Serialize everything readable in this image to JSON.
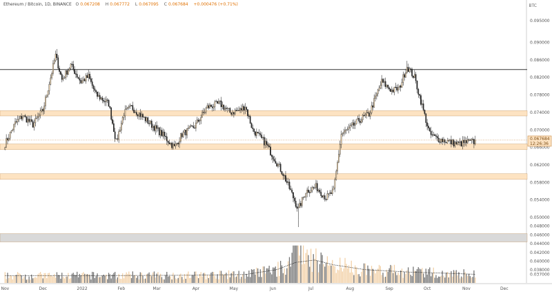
{
  "header": {
    "symbol": "Ethereum / Bitcoin, 1D, BINANCE",
    "open_label": "O",
    "open": "0.067208",
    "high_label": "H",
    "high": "0.067772",
    "low_label": "L",
    "low": "0.067095",
    "close_label": "C",
    "close": "0.067684",
    "change": "+0.000476 (+0.71%)"
  },
  "price_tag": {
    "price": "0.067684",
    "countdown": "12:26:36"
  },
  "chart_data": {
    "type": "candlestick",
    "currency_unit": "BTC",
    "ylim": [
      0.0366,
      0.0997
    ],
    "y_ticks": [
      "0.095000",
      "0.090000",
      "0.086000",
      "0.082000",
      "0.078000",
      "0.074000",
      "0.070000",
      "0.066000",
      "0.062000",
      "0.058000",
      "0.054000",
      "0.050000",
      "0.048000",
      "0.046000",
      "0.044000",
      "0.042000",
      "0.040000",
      "0.038000",
      "0.037000"
    ],
    "y_tick_values": [
      0.095,
      0.09,
      0.086,
      0.082,
      0.078,
      0.074,
      0.07,
      0.066,
      0.062,
      0.058,
      0.054,
      0.05,
      0.048,
      0.046,
      0.044,
      0.042,
      0.04,
      0.038,
      0.037
    ],
    "x_ticks": [
      "Nov",
      "Dec",
      "2022",
      "Feb",
      "Mar",
      "Apr",
      "May",
      "Jun",
      "Jul",
      "Aug",
      "Sep",
      "Oct",
      "Nov",
      "Dec"
    ],
    "x_tick_days": [
      0,
      30,
      61,
      92,
      120,
      151,
      181,
      212,
      242,
      273,
      304,
      334,
      365,
      395
    ],
    "x_note": "x values are days since start of Nov 2021 (one candle per day)",
    "xlim": [
      -4,
      412
    ],
    "price_line": 0.067684,
    "resistance_line": 0.0838,
    "zones": [
      {
        "name": "zone-0.0742",
        "low": 0.0732,
        "high": 0.0744,
        "color": "#fde3c2"
      },
      {
        "name": "zone-0.0667",
        "low": 0.0655,
        "high": 0.0668,
        "color": "#fde3c2"
      },
      {
        "name": "zone-0.0596",
        "low": 0.0587,
        "high": 0.06,
        "color": "#fde3c2"
      },
      {
        "name": "zone-0.0453",
        "low": 0.0444,
        "high": 0.0463,
        "color": "#d9d9d9"
      }
    ],
    "anchors": [
      [
        0,
        0.0668
      ],
      [
        8,
        0.0715
      ],
      [
        14,
        0.0732
      ],
      [
        22,
        0.0712
      ],
      [
        30,
        0.0745
      ],
      [
        40,
        0.087
      ],
      [
        45,
        0.0815
      ],
      [
        52,
        0.0848
      ],
      [
        60,
        0.081
      ],
      [
        66,
        0.0822
      ],
      [
        72,
        0.078
      ],
      [
        82,
        0.076
      ],
      [
        88,
        0.0672
      ],
      [
        94,
        0.0738
      ],
      [
        100,
        0.0752
      ],
      [
        112,
        0.0722
      ],
      [
        125,
        0.0688
      ],
      [
        134,
        0.066
      ],
      [
        140,
        0.069
      ],
      [
        150,
        0.0708
      ],
      [
        160,
        0.0752
      ],
      [
        170,
        0.076
      ],
      [
        178,
        0.074
      ],
      [
        186,
        0.0745
      ],
      [
        190,
        0.0755
      ],
      [
        196,
        0.07
      ],
      [
        206,
        0.067
      ],
      [
        212,
        0.064
      ],
      [
        220,
        0.06
      ],
      [
        226,
        0.056
      ],
      [
        232,
        0.0518
      ],
      [
        238,
        0.056
      ],
      [
        246,
        0.057
      ],
      [
        254,
        0.0545
      ],
      [
        260,
        0.056
      ],
      [
        266,
        0.069
      ],
      [
        274,
        0.0706
      ],
      [
        280,
        0.0722
      ],
      [
        288,
        0.0736
      ],
      [
        298,
        0.081
      ],
      [
        306,
        0.079
      ],
      [
        312,
        0.0795
      ],
      [
        318,
        0.0845
      ],
      [
        324,
        0.082
      ],
      [
        330,
        0.0755
      ],
      [
        336,
        0.069
      ],
      [
        342,
        0.068
      ],
      [
        350,
        0.0674
      ],
      [
        358,
        0.0668
      ],
      [
        366,
        0.0672
      ],
      [
        372,
        0.0673
      ]
    ],
    "volume_ma": [
      [
        0,
        0.3
      ],
      [
        60,
        0.3
      ],
      [
        150,
        0.32
      ],
      [
        190,
        0.35
      ],
      [
        215,
        0.55
      ],
      [
        230,
        0.85
      ],
      [
        245,
        0.95
      ],
      [
        260,
        0.75
      ],
      [
        285,
        0.55
      ],
      [
        320,
        0.45
      ],
      [
        350,
        0.4
      ],
      [
        372,
        0.36
      ]
    ],
    "candle_up_color": "#ffe0b2",
    "candle_up_outline": "#333333",
    "candle_down_color": "#222222",
    "volume_color": "#f0c896",
    "volume_dark_color": "#5a5a5a"
  }
}
